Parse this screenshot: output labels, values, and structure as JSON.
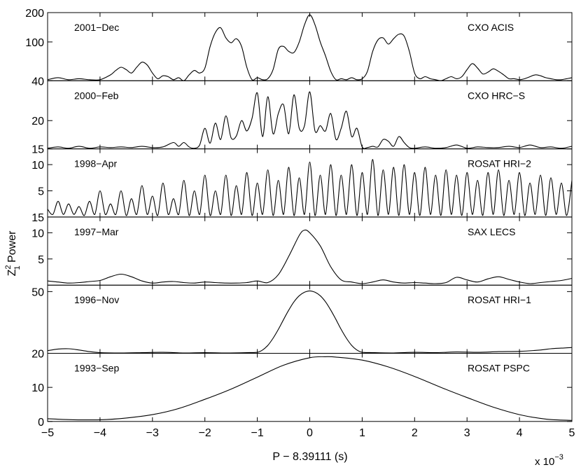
{
  "chart_data": {
    "type": "line",
    "ylabel": "Z",
    "ylabel_sup": "2",
    "ylabel_sub": "1",
    "ylabel_rest": " Power",
    "xlabel": "P − 8.39111 (s)",
    "x_multiplier": "x 10",
    "x_multiplier_exp": "−3",
    "xlim": [
      -5,
      5
    ],
    "x_ticks": [
      -5,
      -4,
      -3,
      -2,
      -1,
      0,
      1,
      2,
      3,
      4,
      5
    ],
    "x_tick_labels": [
      "−5",
      "−4",
      "−3",
      "−2",
      "−1",
      "0",
      "1",
      "2",
      "3",
      "4",
      "5"
    ],
    "panels": [
      {
        "date": "2001−Dec",
        "instrument": "CXO ACIS",
        "y_scale": "log",
        "ylim": [
          40,
          200
        ],
        "y_ticks": [
          40,
          100,
          200
        ],
        "y_tick_labels": [
          "40",
          "100",
          "200"
        ],
        "curve": {
          "x": [
            -5,
            -4.8,
            -4.6,
            -4.4,
            -4.2,
            -4.0,
            -3.8,
            -3.7,
            -3.6,
            -3.5,
            -3.4,
            -3.3,
            -3.2,
            -3.1,
            -3.0,
            -2.9,
            -2.8,
            -2.7,
            -2.6,
            -2.5,
            -2.4,
            -2.3,
            -2.2,
            -2.1,
            -2.0,
            -1.9,
            -1.8,
            -1.7,
            -1.6,
            -1.5,
            -1.4,
            -1.3,
            -1.2,
            -1.1,
            -1.0,
            -0.9,
            -0.8,
            -0.7,
            -0.6,
            -0.5,
            -0.4,
            -0.3,
            -0.2,
            -0.1,
            0.0,
            0.1,
            0.2,
            0.3,
            0.4,
            0.5,
            0.6,
            0.7,
            0.8,
            0.9,
            1.0,
            1.1,
            1.2,
            1.3,
            1.4,
            1.5,
            1.6,
            1.7,
            1.8,
            1.9,
            2.0,
            2.1,
            2.2,
            2.3,
            2.4,
            2.5,
            2.6,
            2.7,
            2.8,
            2.9,
            3.0,
            3.1,
            3.2,
            3.3,
            3.4,
            3.5,
            3.6,
            3.7,
            3.8,
            3.9,
            4.0,
            4.1,
            4.2,
            4.3,
            4.4,
            4.5,
            4.6,
            4.7,
            4.8,
            4.9,
            5.0
          ],
          "y": [
            41,
            43,
            41,
            42,
            41,
            41,
            46,
            51,
            55,
            52,
            48,
            55,
            62,
            58,
            48,
            42,
            45,
            44,
            41,
            43,
            40,
            46,
            51,
            48,
            54,
            90,
            125,
            140,
            110,
            98,
            108,
            90,
            55,
            41,
            43,
            41,
            42,
            52,
            84,
            90,
            80,
            78,
            100,
            150,
            190,
            150,
            100,
            72,
            50,
            41,
            42,
            41,
            43,
            41,
            42,
            50,
            80,
            105,
            110,
            95,
            108,
            120,
            115,
            80,
            48,
            42,
            44,
            42,
            41,
            40,
            42,
            44,
            42,
            44,
            52,
            60,
            54,
            47,
            49,
            53,
            50,
            46,
            42,
            42,
            41,
            42,
            44,
            46,
            45,
            43,
            42,
            41,
            41,
            42,
            43
          ]
        }
      },
      {
        "date": "2000−Feb",
        "instrument": "CXO HRC−S",
        "y_scale": "log",
        "ylim": [
          15,
          30
        ],
        "y_ticks": [
          15,
          20
        ],
        "y_tick_labels": [
          "15",
          "20"
        ],
        "curve": {
          "x": [
            -5,
            -4.8,
            -4.6,
            -4.4,
            -4.2,
            -4.0,
            -3.8,
            -3.6,
            -3.4,
            -3.2,
            -3.0,
            -2.8,
            -2.6,
            -2.5,
            -2.4,
            -2.3,
            -2.2,
            -2.1,
            -2.0,
            -1.9,
            -1.8,
            -1.7,
            -1.6,
            -1.5,
            -1.4,
            -1.3,
            -1.2,
            -1.1,
            -1.0,
            -0.9,
            -0.8,
            -0.7,
            -0.6,
            -0.5,
            -0.4,
            -0.3,
            -0.2,
            -0.1,
            0.0,
            0.1,
            0.2,
            0.3,
            0.4,
            0.5,
            0.6,
            0.7,
            0.8,
            0.9,
            1.0,
            1.1,
            1.2,
            1.3,
            1.4,
            1.5,
            1.6,
            1.7,
            1.8,
            1.9,
            2.0,
            2.2,
            2.4,
            2.6,
            2.8,
            3.0,
            3.2,
            3.4,
            3.6,
            3.8,
            4.0,
            4.2,
            4.4,
            4.6,
            4.8,
            5.0
          ],
          "y": [
            15.1,
            15.3,
            15.1,
            15.4,
            15.1,
            15.3,
            15.2,
            15.3,
            15.2,
            15.4,
            15.2,
            15.3,
            16.0,
            15.4,
            16.0,
            15.3,
            15.1,
            15.6,
            18.5,
            15.9,
            19.5,
            16.5,
            21.0,
            16.8,
            17.1,
            20.0,
            18.0,
            20.5,
            26.5,
            17.0,
            25.5,
            17.5,
            21.5,
            23.5,
            17.5,
            26.0,
            18.5,
            19.0,
            26.8,
            18.0,
            19.0,
            18.0,
            21.5,
            16.5,
            18.5,
            22.0,
            17.0,
            18.5,
            15.3,
            15.2,
            15.4,
            15.3,
            16.5,
            16.2,
            15.4,
            17.0,
            16.0,
            15.2,
            15.1,
            15.3,
            15.1,
            15.2,
            15.6,
            15.1,
            15.3,
            15.2,
            15.2,
            15.4,
            15.2,
            15.6,
            15.2,
            15.3,
            15.1,
            15.4
          ]
        }
      },
      {
        "date": "1998−Apr",
        "instrument": "ROSAT HRI−2",
        "y_scale": "linear",
        "ylim": [
          0,
          13
        ],
        "y_ticks": [
          5,
          10
        ],
        "y_tick_labels": [
          "5",
          "10"
        ],
        "extra_bottom_label": "15",
        "curve": {
          "x": [
            -5,
            -4.9,
            -4.8,
            -4.7,
            -4.6,
            -4.5,
            -4.4,
            -4.3,
            -4.2,
            -4.1,
            -4.0,
            -3.9,
            -3.8,
            -3.7,
            -3.6,
            -3.5,
            -3.4,
            -3.3,
            -3.2,
            -3.1,
            -3.0,
            -2.9,
            -2.8,
            -2.7,
            -2.6,
            -2.5,
            -2.4,
            -2.3,
            -2.2,
            -2.1,
            -2.0,
            -1.9,
            -1.8,
            -1.7,
            -1.6,
            -1.5,
            -1.4,
            -1.3,
            -1.2,
            -1.1,
            -1.0,
            -0.9,
            -0.8,
            -0.7,
            -0.6,
            -0.5,
            -0.4,
            -0.3,
            -0.2,
            -0.1,
            0.0,
            0.1,
            0.2,
            0.3,
            0.4,
            0.5,
            0.6,
            0.7,
            0.8,
            0.9,
            1.0,
            1.1,
            1.2,
            1.3,
            1.4,
            1.5,
            1.6,
            1.7,
            1.8,
            1.9,
            2.0,
            2.1,
            2.2,
            2.3,
            2.4,
            2.5,
            2.6,
            2.7,
            2.8,
            2.9,
            3.0,
            3.1,
            3.2,
            3.3,
            3.4,
            3.5,
            3.6,
            3.7,
            3.8,
            3.9,
            4.0,
            4.1,
            4.2,
            4.3,
            4.4,
            4.5,
            4.6,
            4.7,
            4.8,
            4.9,
            5.0
          ],
          "y": [
            1.5,
            0.5,
            3.0,
            0.5,
            2.5,
            0.5,
            2.0,
            0.3,
            3.0,
            0.5,
            5.0,
            0.5,
            2.5,
            0.5,
            5.0,
            0.3,
            3.5,
            0.5,
            6.0,
            0.5,
            4.0,
            0.3,
            6.5,
            0.5,
            3.5,
            0.5,
            7.0,
            0.3,
            5.0,
            0.5,
            8.0,
            0.3,
            5.0,
            0.5,
            8.0,
            0.3,
            6.0,
            0.5,
            8.5,
            0.3,
            6.5,
            0.5,
            9.0,
            0.3,
            7.0,
            0.5,
            9.5,
            0.3,
            7.5,
            0.5,
            10.5,
            0.3,
            8.0,
            0.5,
            10.0,
            0.3,
            8.0,
            0.5,
            10.0,
            0.3,
            8.5,
            0.5,
            11.0,
            0.3,
            9.0,
            0.5,
            9.5,
            0.3,
            10.0,
            0.5,
            8.5,
            0.3,
            9.5,
            0.5,
            8.0,
            0.3,
            9.0,
            0.5,
            8.0,
            0.3,
            8.5,
            0.5,
            7.0,
            0.3,
            8.5,
            0.5,
            9.0,
            0.3,
            7.0,
            0.5,
            8.5,
            0.3,
            6.5,
            0.5,
            8.0,
            0.3,
            7.5,
            0.5,
            6.5,
            0.3,
            7.0
          ]
        }
      },
      {
        "date": "1997−Mar",
        "instrument": "SAX LECS",
        "y_scale": "linear",
        "ylim": [
          0,
          13
        ],
        "y_ticks": [
          5,
          10
        ],
        "y_tick_labels": [
          "5",
          "10"
        ],
        "curve": {
          "x": [
            -5,
            -4.8,
            -4.6,
            -4.4,
            -4.2,
            -4.0,
            -3.8,
            -3.6,
            -3.4,
            -3.2,
            -3.0,
            -2.8,
            -2.6,
            -2.4,
            -2.2,
            -2.0,
            -1.8,
            -1.6,
            -1.4,
            -1.2,
            -1.0,
            -0.8,
            -0.6,
            -0.4,
            -0.2,
            -0.1,
            0.0,
            0.2,
            0.4,
            0.6,
            0.8,
            1.0,
            1.2,
            1.4,
            1.6,
            1.8,
            2.0,
            2.2,
            2.4,
            2.6,
            2.8,
            3.0,
            3.2,
            3.4,
            3.6,
            3.8,
            4.0,
            4.2,
            4.4,
            4.6,
            4.8,
            5.0
          ],
          "y": [
            0.8,
            0.6,
            0.4,
            0.5,
            0.7,
            0.9,
            1.6,
            2.1,
            1.6,
            0.8,
            0.4,
            0.6,
            0.7,
            0.5,
            0.4,
            0.6,
            0.5,
            0.4,
            0.4,
            0.5,
            0.8,
            0.5,
            2.0,
            5.5,
            9.5,
            10.5,
            10.0,
            7.5,
            3.5,
            1.0,
            0.6,
            0.3,
            0.6,
            1.0,
            0.6,
            0.4,
            0.5,
            0.4,
            0.3,
            0.5,
            1.5,
            1.0,
            0.6,
            1.2,
            1.6,
            1.1,
            0.6,
            0.3,
            0.5,
            0.7,
            0.9,
            1.3
          ]
        }
      },
      {
        "date": "1996−Nov",
        "instrument": "ROSAT HRI−1",
        "y_scale": "log",
        "ylim": [
          20,
          55
        ],
        "y_ticks": [
          20,
          50
        ],
        "y_tick_labels": [
          "20",
          "50"
        ],
        "curve": {
          "x": [
            -5,
            -4.8,
            -4.6,
            -4.4,
            -4.2,
            -4.0,
            -3.6,
            -3.2,
            -2.8,
            -2.4,
            -2.0,
            -1.6,
            -1.2,
            -1.0,
            -0.9,
            -0.8,
            -0.7,
            -0.6,
            -0.5,
            -0.4,
            -0.3,
            -0.2,
            -0.1,
            0.0,
            0.1,
            0.2,
            0.3,
            0.4,
            0.5,
            0.6,
            0.7,
            0.8,
            0.9,
            1.0,
            1.2,
            1.6,
            2.0,
            2.4,
            2.8,
            3.2,
            3.6,
            4.0,
            4.4,
            4.6,
            4.8,
            5.0
          ],
          "y": [
            20.8,
            21.3,
            21.4,
            21.0,
            20.5,
            20.2,
            20.1,
            20.2,
            20.3,
            20.1,
            20.2,
            20.1,
            20.2,
            20.3,
            21.0,
            22.5,
            25.0,
            28.5,
            33.0,
            38.0,
            43.0,
            47.0,
            49.5,
            50.5,
            49.5,
            47.0,
            43.0,
            38.0,
            33.0,
            28.5,
            25.0,
            22.5,
            21.0,
            20.3,
            20.2,
            20.1,
            20.3,
            20.2,
            20.4,
            20.3,
            20.5,
            20.6,
            21.0,
            21.4,
            21.6,
            21.8
          ]
        }
      },
      {
        "date": "1993−Sep",
        "instrument": "ROSAT PSPC",
        "y_scale": "linear",
        "ylim": [
          0,
          20
        ],
        "y_ticks": [
          0,
          10
        ],
        "y_tick_labels": [
          "0",
          "10"
        ],
        "curve": {
          "x": [
            -5,
            -4.5,
            -4.0,
            -3.5,
            -3.0,
            -2.5,
            -2.0,
            -1.5,
            -1.0,
            -0.5,
            0.0,
            0.3,
            0.5,
            1.0,
            1.5,
            2.0,
            2.5,
            3.0,
            3.5,
            4.0,
            4.5,
            5.0
          ],
          "y": [
            0.8,
            0.5,
            0.5,
            1.0,
            2.0,
            3.8,
            6.5,
            9.5,
            13.0,
            16.5,
            18.7,
            19.0,
            18.9,
            18.0,
            16.0,
            13.2,
            10.0,
            7.0,
            4.2,
            2.0,
            0.7,
            0.3
          ]
        }
      }
    ]
  }
}
